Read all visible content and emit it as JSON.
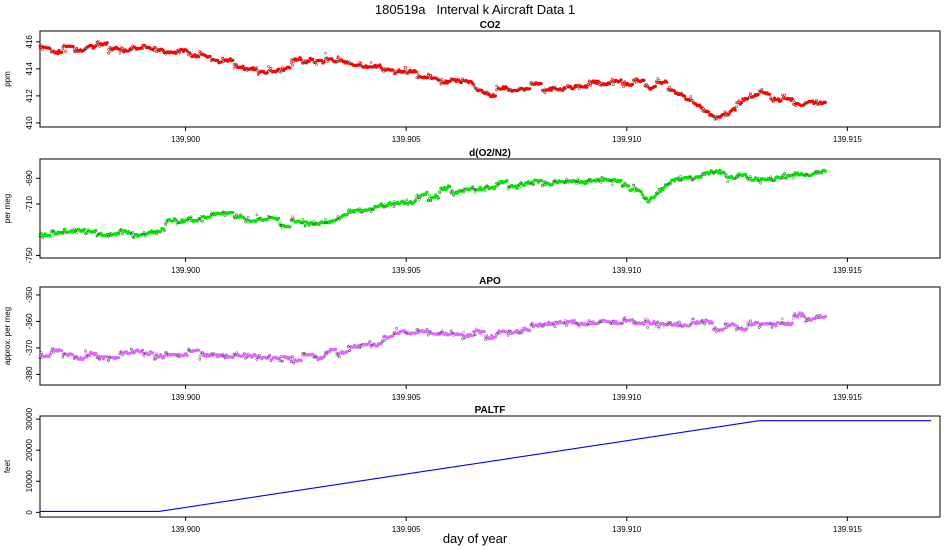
{
  "figure": {
    "title": "180519a   Interval k Aircraft Data 1",
    "xlabel": "day of year"
  },
  "chart_data": [
    {
      "type": "scatter",
      "title": "CO2",
      "ylabel": "ppm",
      "xlim": [
        139.8967,
        139.9171
      ],
      "ylim": [
        409.7,
        416.8
      ],
      "yticks": [
        410,
        412,
        414,
        416
      ],
      "ytick_labels": [
        "410",
        "412",
        "414",
        "416"
      ],
      "xticks": [
        139.9,
        139.905,
        139.91,
        139.915
      ],
      "xtick_labels": [
        "139.900",
        "139.905",
        "139.910",
        "139.915"
      ],
      "color": "#ff0000",
      "x_start": 139.8967,
      "x_end": 139.9145,
      "trend": [
        [
          139.8967,
          415.4
        ],
        [
          139.899,
          415.6
        ],
        [
          139.9,
          415.2
        ],
        [
          139.901,
          414.4
        ],
        [
          139.902,
          413.9
        ],
        [
          139.903,
          415.0
        ],
        [
          139.904,
          414.1
        ],
        [
          139.905,
          413.7
        ],
        [
          139.906,
          413.1
        ],
        [
          139.907,
          412.2
        ],
        [
          139.908,
          412.6
        ],
        [
          139.909,
          412.9
        ],
        [
          139.91,
          413.1
        ],
        [
          139.911,
          412.6
        ],
        [
          139.912,
          410.5
        ],
        [
          139.913,
          412.1
        ],
        [
          139.914,
          411.5
        ],
        [
          139.9145,
          411.4
        ]
      ]
    },
    {
      "type": "scatter",
      "title": "d(O2/N2)",
      "ylabel": "per meg",
      "xlim": [
        139.8967,
        139.9171
      ],
      "ylim": [
        -752,
        -675
      ],
      "yticks": [
        -750,
        -710,
        -690
      ],
      "ytick_labels": [
        "-750",
        "-710",
        "-690"
      ],
      "xticks": [
        139.9,
        139.905,
        139.91,
        139.915
      ],
      "xtick_labels": [
        "139.900",
        "139.905",
        "139.910",
        "139.915"
      ],
      "color": "#00e600",
      "x_start": 139.8967,
      "x_end": 139.9145,
      "trend": [
        [
          139.8967,
          -732
        ],
        [
          139.899,
          -733
        ],
        [
          139.9,
          -722
        ],
        [
          139.901,
          -718
        ],
        [
          139.902,
          -722
        ],
        [
          139.903,
          -726
        ],
        [
          139.904,
          -716
        ],
        [
          139.905,
          -707
        ],
        [
          139.906,
          -700
        ],
        [
          139.907,
          -696
        ],
        [
          139.908,
          -693
        ],
        [
          139.909,
          -694
        ],
        [
          139.91,
          -693
        ],
        [
          139.9105,
          -708
        ],
        [
          139.911,
          -695
        ],
        [
          139.912,
          -685
        ],
        [
          139.913,
          -690
        ],
        [
          139.914,
          -686
        ],
        [
          139.9145,
          -683
        ]
      ]
    },
    {
      "type": "scatter",
      "title": "APO",
      "ylabel": "approx. per meg",
      "xlim": [
        139.8967,
        139.9171
      ],
      "ylim": [
        -384,
        -347
      ],
      "yticks": [
        -380,
        -370,
        -360,
        -350
      ],
      "ytick_labels": [
        "-380",
        "-370",
        "-360",
        "-350"
      ],
      "xticks": [
        139.9,
        139.905,
        139.91,
        139.915
      ],
      "xtick_labels": [
        "139.900",
        "139.905",
        "139.910",
        "139.915"
      ],
      "color": "#e066ff",
      "x_start": 139.8967,
      "x_end": 139.9145,
      "trend": [
        [
          139.8967,
          -373
        ],
        [
          139.9,
          -372
        ],
        [
          139.903,
          -374
        ],
        [
          139.904,
          -369
        ],
        [
          139.905,
          -364
        ],
        [
          139.907,
          -365
        ],
        [
          139.909,
          -360
        ],
        [
          139.911,
          -361
        ],
        [
          139.913,
          -362
        ],
        [
          139.9145,
          -358
        ]
      ]
    },
    {
      "type": "line",
      "title": "PALTF",
      "ylabel": "feet",
      "xlim": [
        139.8967,
        139.9171
      ],
      "ylim": [
        -1500,
        31000
      ],
      "yticks": [
        0,
        10000,
        20000,
        30000
      ],
      "ytick_labels": [
        "0",
        "10000",
        "20000",
        "30000"
      ],
      "xticks": [
        139.9,
        139.905,
        139.91,
        139.915
      ],
      "xtick_labels": [
        "139.900",
        "139.905",
        "139.910",
        "139.915"
      ],
      "color": "#0000ff",
      "x": [
        139.8967,
        139.8994,
        139.913,
        139.9169
      ],
      "y": [
        300,
        300,
        29500,
        29500
      ]
    }
  ]
}
